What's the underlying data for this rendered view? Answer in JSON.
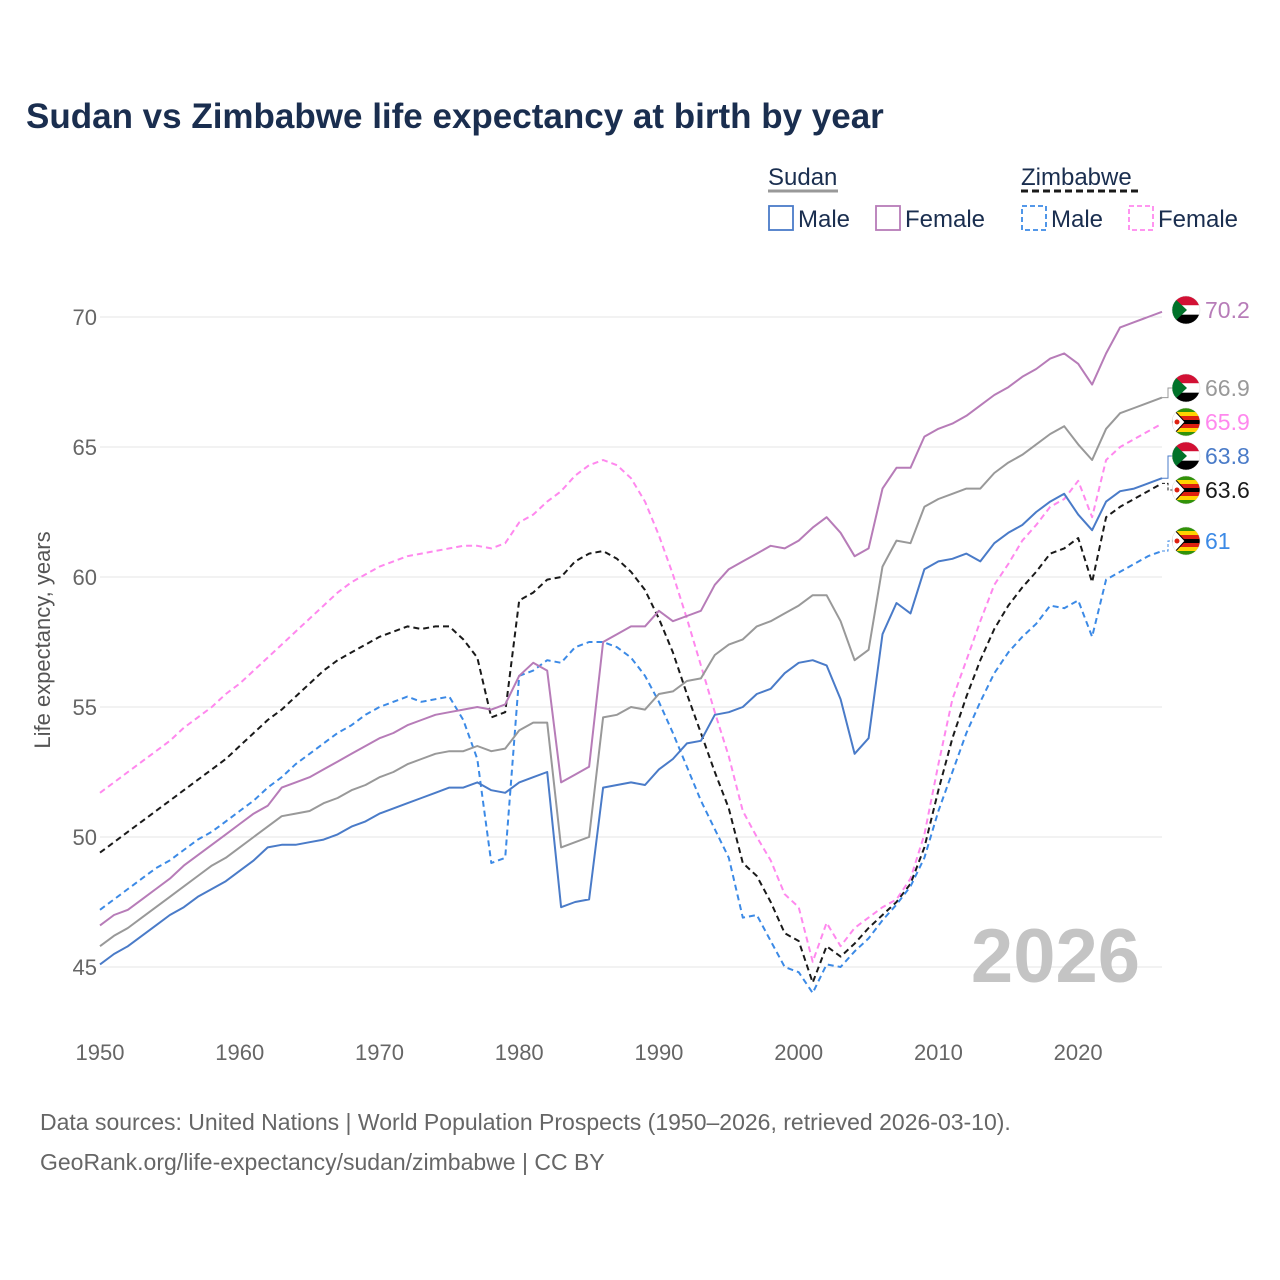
{
  "colors": {
    "sudan_male": "#4a7bc8",
    "sudan_female": "#b77cb8",
    "sudan_total": "#999999",
    "zimbabwe_male": "#3c8ae6",
    "zimbabwe_female": "#ff88ee",
    "zimbabwe_total": "#1a1a1a",
    "grid": "#e6e6e6",
    "title": "#1a2e4f"
  },
  "legend": {
    "groups": [
      {
        "name": "Sudan",
        "line_series": "sudan_total",
        "items": [
          {
            "label": "Male",
            "series": "sudan_male"
          },
          {
            "label": "Female",
            "series": "sudan_female"
          }
        ]
      },
      {
        "name": "Zimbabwe",
        "line_series": "zimbabwe_total",
        "items": [
          {
            "label": "Male",
            "series": "zimbabwe_male"
          },
          {
            "label": "Female",
            "series": "zimbabwe_female"
          }
        ]
      }
    ]
  },
  "year_watermark": "2026",
  "sources": {
    "line1": "Data sources: United Nations | World Population Prospects (1950–2026, retrieved 2026-03-10).",
    "line2": "GeoRank.org/life-expectancy/sudan/zimbabwe | CC BY"
  },
  "chart_data": {
    "type": "line",
    "title": "Sudan vs Zimbabwe life expectancy at birth by year",
    "xlabel": "",
    "ylabel": "Life expectancy, years",
    "xlim": [
      1950,
      2026
    ],
    "ylim": [
      43.5,
      71.5
    ],
    "x_ticks": [
      1950,
      1960,
      1970,
      1980,
      1990,
      2000,
      2010,
      2020
    ],
    "y_ticks": [
      45,
      50,
      55,
      60,
      65,
      70
    ],
    "x": [
      1950,
      1951,
      1952,
      1953,
      1954,
      1955,
      1956,
      1957,
      1958,
      1959,
      1960,
      1961,
      1962,
      1963,
      1964,
      1965,
      1966,
      1967,
      1968,
      1969,
      1970,
      1971,
      1972,
      1973,
      1974,
      1975,
      1976,
      1977,
      1978,
      1979,
      1980,
      1981,
      1982,
      1983,
      1984,
      1985,
      1986,
      1987,
      1988,
      1989,
      1990,
      1991,
      1992,
      1993,
      1994,
      1995,
      1996,
      1997,
      1998,
      1999,
      2000,
      2001,
      2002,
      2003,
      2004,
      2005,
      2006,
      2007,
      2008,
      2009,
      2010,
      2011,
      2012,
      2013,
      2014,
      2015,
      2016,
      2017,
      2018,
      2019,
      2020,
      2021,
      2022,
      2023,
      2024,
      2025,
      2026
    ],
    "series": [
      {
        "key": "sudan_male",
        "name": "Sudan Male",
        "dashed": false,
        "end_label": "63.8",
        "values": [
          45.1,
          45.5,
          45.8,
          46.2,
          46.6,
          47.0,
          47.3,
          47.7,
          48.0,
          48.3,
          48.7,
          49.1,
          49.6,
          49.7,
          49.7,
          49.8,
          49.9,
          50.1,
          50.4,
          50.6,
          50.9,
          51.1,
          51.3,
          51.5,
          51.7,
          51.9,
          51.9,
          52.1,
          51.8,
          51.7,
          52.1,
          52.3,
          52.5,
          47.3,
          47.5,
          47.6,
          51.9,
          52.0,
          52.1,
          52.0,
          52.6,
          53.0,
          53.6,
          53.7,
          54.7,
          54.8,
          55.0,
          55.5,
          55.7,
          56.3,
          56.7,
          56.8,
          56.6,
          55.3,
          53.2,
          53.8,
          57.8,
          59.0,
          58.6,
          60.3,
          60.6,
          60.7,
          60.9,
          60.6,
          61.3,
          61.7,
          62.0,
          62.5,
          62.9,
          63.2,
          62.4,
          61.8,
          62.9,
          63.3,
          63.4,
          63.6,
          63.8
        ]
      },
      {
        "key": "sudan_female",
        "name": "Sudan Female",
        "dashed": false,
        "end_label": "70.2",
        "values": [
          46.6,
          47.0,
          47.2,
          47.6,
          48.0,
          48.4,
          48.9,
          49.3,
          49.7,
          50.1,
          50.5,
          50.9,
          51.2,
          51.9,
          52.1,
          52.3,
          52.6,
          52.9,
          53.2,
          53.5,
          53.8,
          54.0,
          54.3,
          54.5,
          54.7,
          54.8,
          54.9,
          55.0,
          54.9,
          55.1,
          56.2,
          56.7,
          56.4,
          52.1,
          52.4,
          52.7,
          57.5,
          57.8,
          58.1,
          58.1,
          58.7,
          58.3,
          58.5,
          58.7,
          59.7,
          60.3,
          60.6,
          60.9,
          61.2,
          61.1,
          61.4,
          61.9,
          62.3,
          61.7,
          60.8,
          61.1,
          63.4,
          64.2,
          64.2,
          65.4,
          65.7,
          65.9,
          66.2,
          66.6,
          67.0,
          67.3,
          67.7,
          68.0,
          68.4,
          68.6,
          68.2,
          67.4,
          68.6,
          69.6,
          69.8,
          70.0,
          70.2
        ]
      },
      {
        "key": "sudan_total",
        "name": "Sudan",
        "dashed": false,
        "end_label": "66.9",
        "values": [
          45.8,
          46.2,
          46.5,
          46.9,
          47.3,
          47.7,
          48.1,
          48.5,
          48.9,
          49.2,
          49.6,
          50.0,
          50.4,
          50.8,
          50.9,
          51.0,
          51.3,
          51.5,
          51.8,
          52.0,
          52.3,
          52.5,
          52.8,
          53.0,
          53.2,
          53.3,
          53.3,
          53.5,
          53.3,
          53.4,
          54.1,
          54.4,
          54.4,
          49.6,
          49.8,
          50.0,
          54.6,
          54.7,
          55.0,
          54.9,
          55.5,
          55.6,
          56.0,
          56.1,
          57.0,
          57.4,
          57.6,
          58.1,
          58.3,
          58.6,
          58.9,
          59.3,
          59.3,
          58.3,
          56.8,
          57.2,
          60.4,
          61.4,
          61.3,
          62.7,
          63.0,
          63.2,
          63.4,
          63.4,
          64.0,
          64.4,
          64.7,
          65.1,
          65.5,
          65.8,
          65.1,
          64.5,
          65.7,
          66.3,
          66.5,
          66.7,
          66.9
        ]
      },
      {
        "key": "zimbabwe_male",
        "name": "Zimbabwe Male",
        "dashed": true,
        "end_label": "61",
        "values": [
          47.2,
          47.6,
          48.0,
          48.4,
          48.8,
          49.1,
          49.5,
          49.9,
          50.2,
          50.6,
          51.0,
          51.4,
          51.9,
          52.3,
          52.8,
          53.2,
          53.6,
          54.0,
          54.3,
          54.7,
          55.0,
          55.2,
          55.4,
          55.2,
          55.3,
          55.4,
          54.5,
          53.0,
          49.0,
          49.2,
          56.2,
          56.4,
          56.8,
          56.7,
          57.3,
          57.5,
          57.5,
          57.3,
          56.9,
          56.2,
          55.2,
          54.0,
          52.7,
          51.4,
          50.3,
          49.2,
          46.9,
          47.0,
          46.0,
          45.0,
          44.8,
          44.0,
          45.1,
          45.0,
          45.6,
          46.1,
          46.8,
          47.4,
          48.1,
          49.2,
          51.0,
          52.5,
          54.0,
          55.2,
          56.3,
          57.1,
          57.7,
          58.2,
          58.9,
          58.8,
          59.1,
          57.7,
          59.9,
          60.2,
          60.5,
          60.8,
          61.0
        ]
      },
      {
        "key": "zimbabwe_female",
        "name": "Zimbabwe Female",
        "dashed": true,
        "end_label": "65.9",
        "values": [
          51.7,
          52.1,
          52.5,
          52.9,
          53.3,
          53.7,
          54.2,
          54.6,
          55.0,
          55.5,
          55.9,
          56.4,
          56.9,
          57.4,
          57.9,
          58.4,
          58.9,
          59.4,
          59.8,
          60.1,
          60.4,
          60.6,
          60.8,
          60.9,
          61.0,
          61.1,
          61.2,
          61.2,
          61.1,
          61.3,
          62.1,
          62.4,
          62.9,
          63.3,
          63.9,
          64.3,
          64.5,
          64.3,
          63.8,
          62.9,
          61.6,
          60.1,
          58.4,
          56.6,
          54.8,
          53.1,
          51.0,
          50.0,
          49.1,
          47.8,
          47.3,
          45.2,
          46.7,
          45.8,
          46.5,
          46.9,
          47.3,
          47.6,
          48.4,
          50.1,
          52.8,
          55.3,
          56.8,
          58.3,
          59.7,
          60.5,
          61.4,
          62.0,
          62.7,
          63.0,
          63.7,
          62.3,
          64.5,
          65.0,
          65.3,
          65.6,
          65.9
        ]
      },
      {
        "key": "zimbabwe_total",
        "name": "Zimbabwe",
        "dashed": true,
        "end_label": "63.6",
        "values": [
          49.4,
          49.8,
          50.2,
          50.6,
          51.0,
          51.4,
          51.8,
          52.2,
          52.6,
          53.0,
          53.5,
          54.0,
          54.5,
          54.9,
          55.4,
          55.9,
          56.4,
          56.8,
          57.1,
          57.4,
          57.7,
          57.9,
          58.1,
          58.0,
          58.1,
          58.1,
          57.6,
          56.9,
          54.6,
          54.8,
          59.1,
          59.4,
          59.9,
          60.0,
          60.6,
          60.9,
          61.0,
          60.7,
          60.2,
          59.5,
          58.4,
          57.1,
          55.5,
          54.0,
          52.5,
          51.1,
          49.0,
          48.5,
          47.5,
          46.3,
          46.0,
          44.4,
          45.8,
          45.4,
          45.9,
          46.5,
          47.0,
          47.5,
          48.2,
          49.6,
          51.8,
          53.8,
          55.4,
          56.8,
          58.0,
          58.9,
          59.6,
          60.2,
          60.9,
          61.1,
          61.5,
          59.8,
          62.3,
          62.7,
          63.0,
          63.3,
          63.6
        ]
      }
    ]
  }
}
